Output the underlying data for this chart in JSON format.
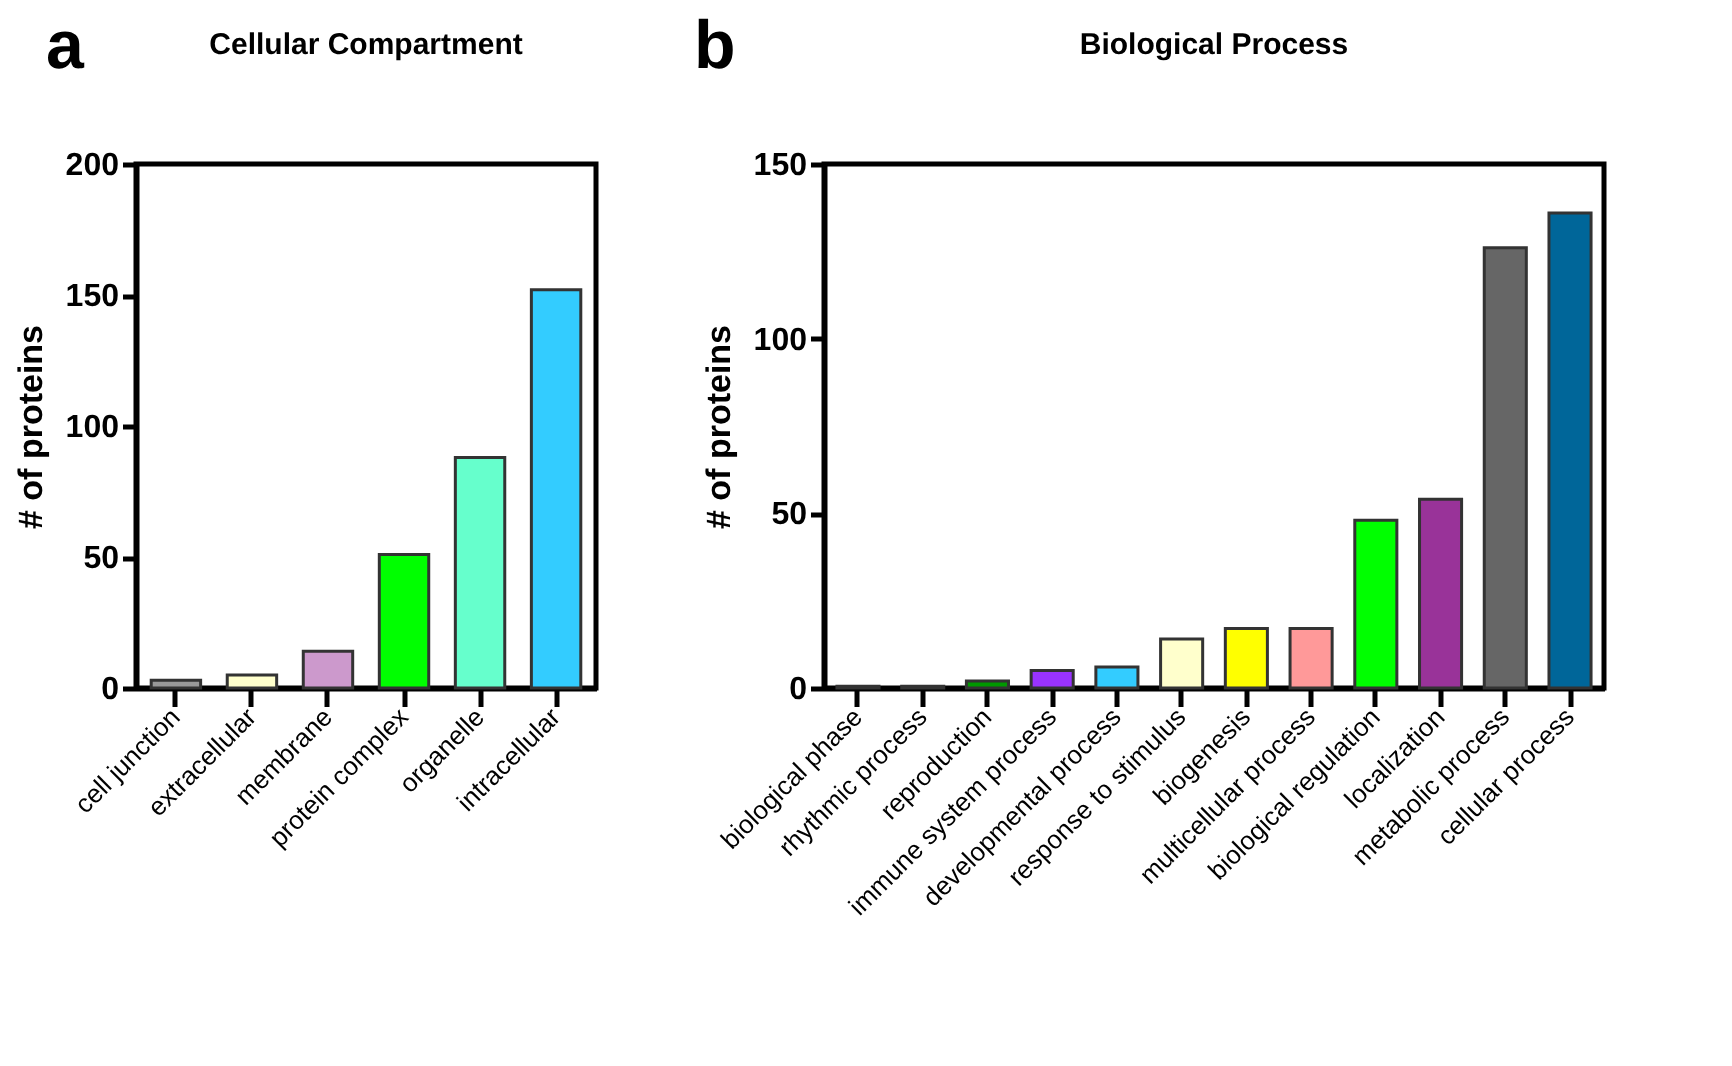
{
  "chart_data": [
    {
      "type": "bar",
      "title": "Cellular Compartment",
      "ylabel": "# of proteins",
      "annotations": [
        "a"
      ],
      "categories": [
        "cell junction",
        "extracellular",
        "membrane",
        "protein complex",
        "organelle",
        "intracellular"
      ],
      "values": [
        3,
        5,
        14,
        51,
        88,
        152
      ],
      "colors": [
        "#999999",
        "#ffffcc",
        "#cc99cc",
        "#00ff00",
        "#66ffcc",
        "#33ccff"
      ],
      "ylim": [
        0,
        200
      ],
      "yticks": [
        0,
        50,
        100,
        150,
        200
      ],
      "grid": false
    },
    {
      "type": "bar",
      "title": "Biological Process",
      "ylabel": "# of proteins",
      "annotations": [
        "b"
      ],
      "categories": [
        "biological phase",
        "rhythmic process",
        "reproduction",
        "immune system process",
        "developmental process",
        "response to stimulus",
        "biogenesis",
        "multicellular process",
        "biological regulation",
        "localization",
        "metabolic process",
        "cellular process"
      ],
      "values": [
        0.5,
        0.5,
        2,
        5,
        6,
        14,
        17,
        17,
        48,
        54,
        126,
        136
      ],
      "colors": [
        "#999999",
        "#999999",
        "#009900",
        "#9933ff",
        "#33ccff",
        "#ffffcc",
        "#ffff00",
        "#ff9999",
        "#00ff00",
        "#993399",
        "#666666",
        "#006699"
      ],
      "ylim": [
        0,
        150
      ],
      "yticks": [
        0,
        50,
        100,
        150
      ],
      "grid": false
    }
  ]
}
